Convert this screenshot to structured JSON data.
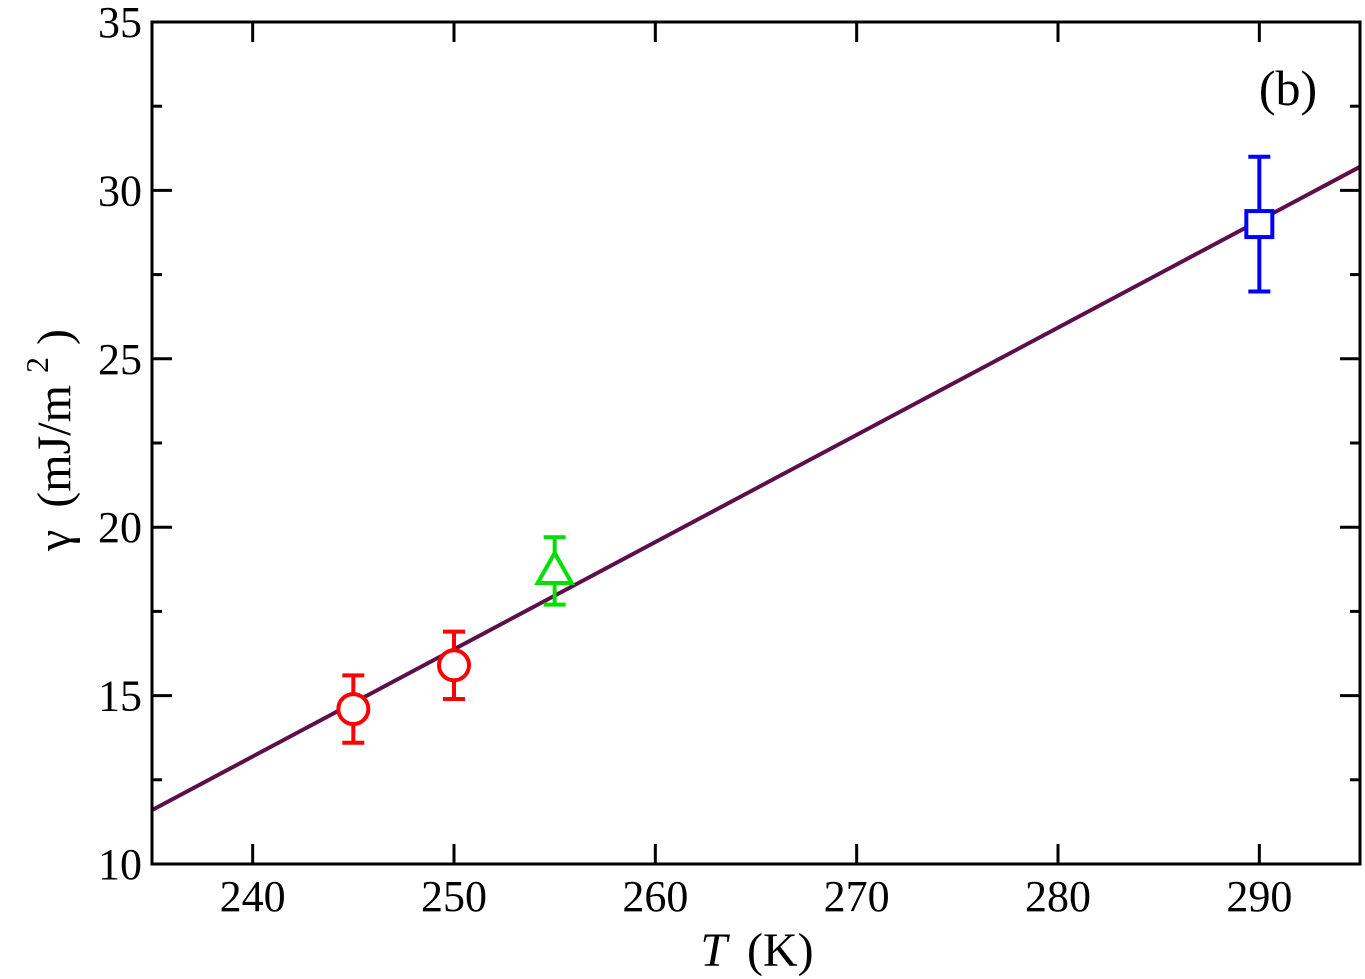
{
  "chart_data": {
    "type": "scatter",
    "panel_label": "(b)",
    "xlabel_italic": "T",
    "xlabel_unit": "(K)",
    "ylabel_symbol": "γ",
    "ylabel_unit": "(mJ/m",
    "ylabel_exponent": "2",
    "ylabel_close": ")",
    "xlim": [
      235,
      295
    ],
    "ylim": [
      10,
      35
    ],
    "x_ticks": [
      240,
      250,
      260,
      270,
      280,
      290
    ],
    "y_ticks": [
      10,
      15,
      20,
      25,
      30,
      35
    ],
    "grid": false,
    "series": [
      {
        "marker": "circle",
        "color": "#ff0000",
        "points": [
          {
            "x": 245,
            "y": 14.6,
            "err": 1.0
          },
          {
            "x": 250,
            "y": 15.9,
            "err": 1.0
          }
        ]
      },
      {
        "marker": "triangle",
        "color": "#00e000",
        "points": [
          {
            "x": 255,
            "y": 18.7,
            "err": 1.0
          }
        ]
      },
      {
        "marker": "square",
        "color": "#0000ff",
        "points": [
          {
            "x": 290,
            "y": 29.0,
            "err": 2.0
          }
        ]
      }
    ],
    "fit_line": {
      "color": "#5c0f4a",
      "x": [
        235,
        295
      ],
      "y": [
        11.6,
        30.7
      ]
    }
  }
}
